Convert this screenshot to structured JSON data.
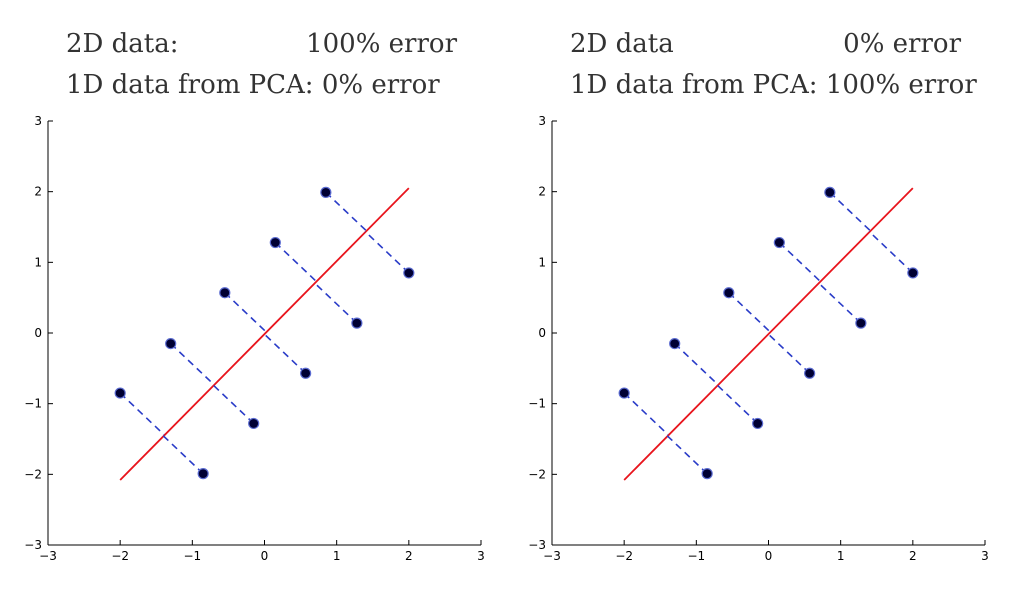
{
  "chart_data": [
    {
      "type": "scatter",
      "title_lines": [
        {
          "left": "2D data:",
          "right": "100% error"
        },
        {
          "left": "1D data from PCA: 0% error",
          "right": ""
        }
      ],
      "xlim": [
        -3,
        3
      ],
      "ylim": [
        -3,
        3
      ],
      "xticks": [
        -3,
        -2,
        -1,
        0,
        1,
        2,
        3
      ],
      "yticks": [
        -3,
        -2,
        -1,
        0,
        1,
        2,
        3
      ],
      "xtick_labels": [
        "−3",
        "−2",
        "−1",
        "0",
        "1",
        "2",
        "3"
      ],
      "ytick_labels": [
        "−3",
        "−2",
        "−1",
        "0",
        "1",
        "2",
        "3"
      ],
      "points": [
        {
          "x": -2.0,
          "y": -0.85
        },
        {
          "x": -1.3,
          "y": -0.15
        },
        {
          "x": -0.55,
          "y": 0.57
        },
        {
          "x": 0.15,
          "y": 1.28
        },
        {
          "x": 0.85,
          "y": 1.99
        },
        {
          "x": -0.85,
          "y": -1.99
        },
        {
          "x": -0.15,
          "y": -1.28
        },
        {
          "x": 0.57,
          "y": -0.57
        },
        {
          "x": 1.28,
          "y": 0.14
        },
        {
          "x": 2.0,
          "y": 0.85
        }
      ],
      "principal_line": {
        "x": [
          -2.0,
          2.0
        ],
        "y": [
          -2.08,
          2.05
        ],
        "color": "#e8141c"
      },
      "projection_color": "#2a3cc8",
      "point_color": "#000033",
      "grid": false
    },
    {
      "type": "scatter",
      "title_lines": [
        {
          "left": "2D data",
          "right": "0% error"
        },
        {
          "left": "1D data from PCA: 100% error",
          "right": ""
        }
      ],
      "xlim": [
        -3,
        3
      ],
      "ylim": [
        -3,
        3
      ],
      "xticks": [
        -3,
        -2,
        -1,
        0,
        1,
        2,
        3
      ],
      "yticks": [
        -3,
        -2,
        -1,
        0,
        1,
        2,
        3
      ],
      "xtick_labels": [
        "−3",
        "−2",
        "−1",
        "0",
        "1",
        "2",
        "3"
      ],
      "ytick_labels": [
        "−3",
        "−2",
        "−1",
        "0",
        "1",
        "2",
        "3"
      ],
      "points": [
        {
          "x": -2.0,
          "y": -0.85
        },
        {
          "x": -1.3,
          "y": -0.15
        },
        {
          "x": -0.55,
          "y": 0.57
        },
        {
          "x": 0.15,
          "y": 1.28
        },
        {
          "x": 0.85,
          "y": 1.99
        },
        {
          "x": -0.85,
          "y": -1.99
        },
        {
          "x": -0.15,
          "y": -1.28
        },
        {
          "x": 0.57,
          "y": -0.57
        },
        {
          "x": 1.28,
          "y": 0.14
        },
        {
          "x": 2.0,
          "y": 0.85
        }
      ],
      "principal_line": {
        "x": [
          -2.0,
          2.0
        ],
        "y": [
          -2.08,
          2.05
        ],
        "color": "#e8141c"
      },
      "projection_color": "#2a3cc8",
      "point_color": "#000033",
      "grid": false
    }
  ]
}
